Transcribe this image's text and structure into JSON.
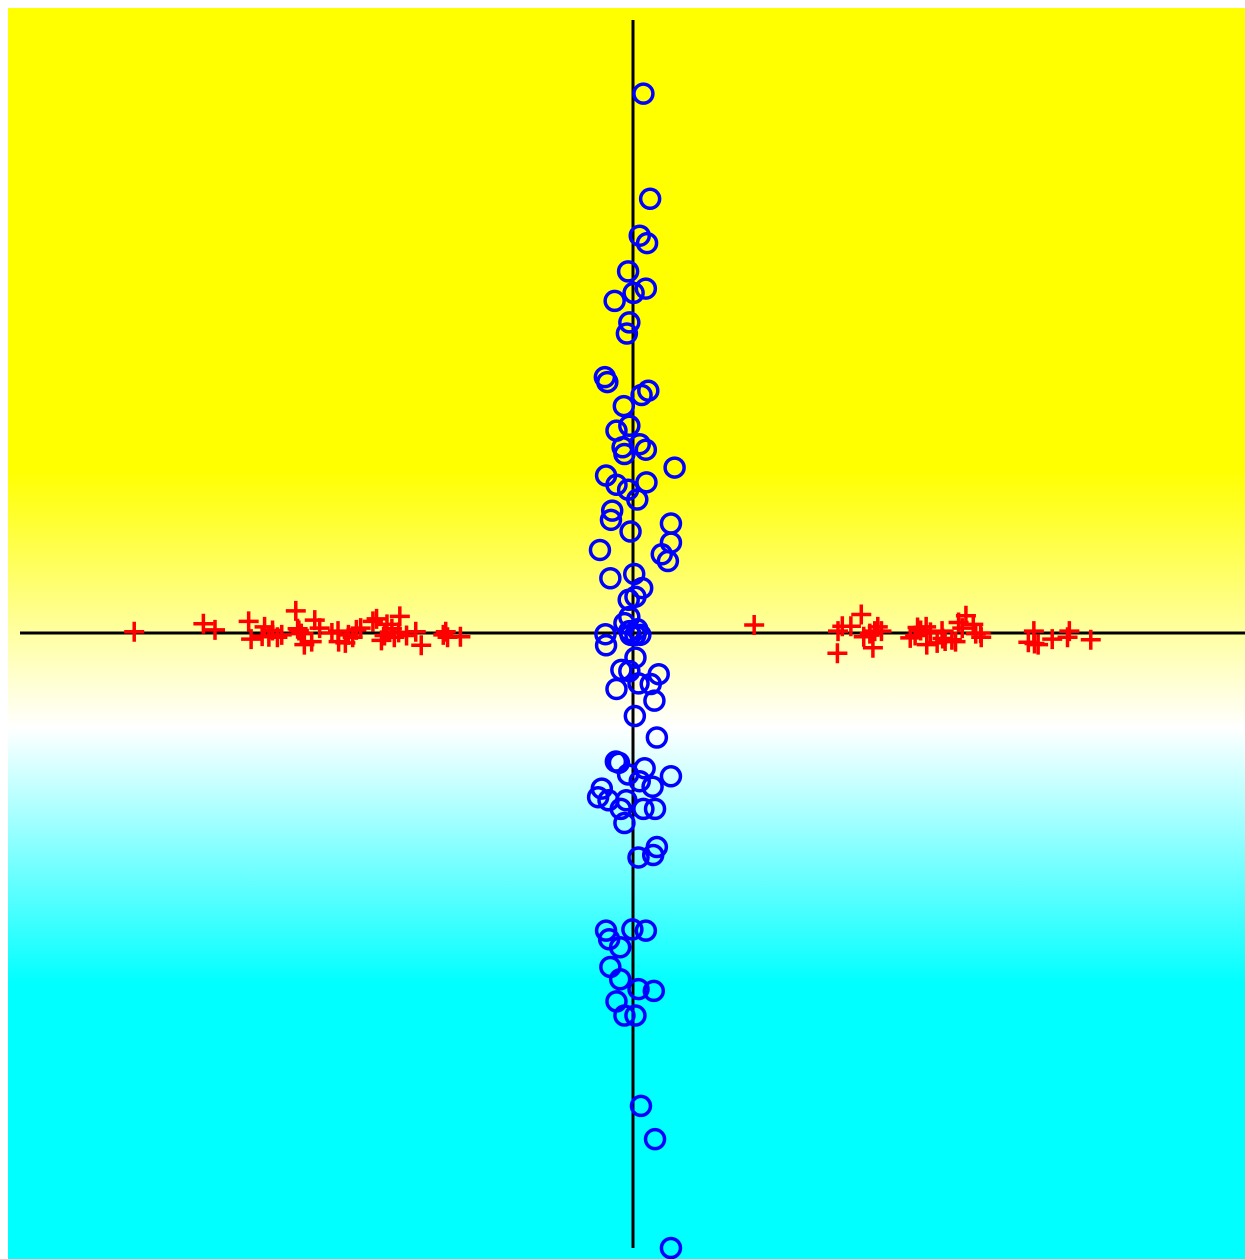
{
  "chart_data": {
    "type": "scatter",
    "title": "",
    "xlabel": "",
    "ylabel": "",
    "xlim": [
      -10,
      10
    ],
    "ylim": [
      -10,
      10
    ],
    "grid": false,
    "axes_lines_through_origin": true,
    "background": {
      "kind": "decision-surface-gradient",
      "top_color": "#ffff00",
      "mid_color": "#ffffff",
      "bottom_color": "#00ffff"
    },
    "series": [
      {
        "marker": "plus",
        "color": "#ff0000",
        "points": [
          [
            -8.15,
            0.02
          ],
          [
            -7.02,
            0.15
          ],
          [
            -6.83,
            0.05
          ],
          [
            -6.28,
            0.19
          ],
          [
            -6.24,
            -0.1
          ],
          [
            -6.06,
            -0.05
          ],
          [
            -6.02,
            0.1
          ],
          [
            -5.95,
            -0.06
          ],
          [
            -5.89,
            0.04
          ],
          [
            -5.81,
            -0.07
          ],
          [
            -5.74,
            -0.03
          ],
          [
            -5.51,
            0.36
          ],
          [
            -5.48,
            0.07
          ],
          [
            -5.46,
            0.04
          ],
          [
            -5.42,
            -0.01
          ],
          [
            -5.37,
            -0.19
          ],
          [
            -5.25,
            -0.14
          ],
          [
            -5.2,
            0.21
          ],
          [
            -5.12,
            0.08
          ],
          [
            -4.92,
            0.0
          ],
          [
            -4.82,
            0.03
          ],
          [
            -4.81,
            -0.14
          ],
          [
            -4.7,
            -0.16
          ],
          [
            -4.65,
            -0.03
          ],
          [
            -4.58,
            -0.07
          ],
          [
            -4.52,
            0.05
          ],
          [
            -4.45,
            0.08
          ],
          [
            -4.25,
            0.19
          ],
          [
            -4.19,
            0.23
          ],
          [
            -4.11,
            -0.12
          ],
          [
            -4.06,
            -0.04
          ],
          [
            -4.02,
            0.14
          ],
          [
            -3.94,
            0.07
          ],
          [
            -3.9,
            -0.07
          ],
          [
            -3.83,
            0.01
          ],
          [
            -3.81,
            0.27
          ],
          [
            -3.7,
            -0.04
          ],
          [
            -3.55,
            0.02
          ],
          [
            -3.46,
            -0.2
          ],
          [
            -3.1,
            -0.03
          ],
          [
            -3.06,
            0.02
          ],
          [
            -3.03,
            -0.07
          ],
          [
            -2.82,
            -0.06
          ],
          [
            1.98,
            0.13
          ],
          [
            3.34,
            -0.33
          ],
          [
            3.35,
            0.03
          ],
          [
            3.42,
            0.11
          ],
          [
            3.56,
            0.11
          ],
          [
            3.73,
            0.3
          ],
          [
            3.77,
            -0.06
          ],
          [
            3.87,
            -0.01
          ],
          [
            3.92,
            -0.24
          ],
          [
            3.95,
            0.03
          ],
          [
            4.0,
            0.1
          ],
          [
            4.06,
            0.03
          ],
          [
            4.53,
            -0.08
          ],
          [
            4.61,
            -0.04
          ],
          [
            4.65,
            0.09
          ],
          [
            4.7,
            0.04
          ],
          [
            4.79,
            0.1
          ],
          [
            4.8,
            -0.19
          ],
          [
            4.86,
            0.01
          ],
          [
            4.97,
            -0.16
          ],
          [
            5.05,
            0.03
          ],
          [
            5.06,
            -0.09
          ],
          [
            5.1,
            -0.13
          ],
          [
            5.21,
            -0.11
          ],
          [
            5.27,
            -0.14
          ],
          [
            5.32,
            0.17
          ],
          [
            5.38,
            0.08
          ],
          [
            5.44,
            0.28
          ],
          [
            5.56,
            0.14
          ],
          [
            5.6,
            -0.01
          ],
          [
            5.68,
            0.0
          ],
          [
            5.69,
            -0.07
          ],
          [
            6.46,
            -0.15
          ],
          [
            6.55,
            0.03
          ],
          [
            6.56,
            -0.17
          ],
          [
            6.62,
            -0.19
          ],
          [
            6.85,
            -0.1
          ],
          [
            7.1,
            -0.07
          ],
          [
            7.13,
            0.03
          ],
          [
            7.48,
            -0.11
          ]
        ]
      },
      {
        "marker": "circle",
        "color": "#0000ff",
        "points": [
          [
            0.17,
            8.77
          ],
          [
            0.28,
            7.06
          ],
          [
            0.11,
            6.46
          ],
          [
            0.23,
            6.34
          ],
          [
            -0.08,
            5.88
          ],
          [
            0.21,
            5.6
          ],
          [
            0.01,
            5.53
          ],
          [
            -0.3,
            5.4
          ],
          [
            -0.06,
            5.05
          ],
          [
            -0.1,
            4.87
          ],
          [
            -0.46,
            4.16
          ],
          [
            -0.42,
            4.08
          ],
          [
            0.25,
            3.94
          ],
          [
            0.14,
            3.87
          ],
          [
            -0.15,
            3.69
          ],
          [
            -0.06,
            3.37
          ],
          [
            -0.27,
            3.29
          ],
          [
            0.11,
            3.07
          ],
          [
            -0.17,
            3.02
          ],
          [
            -0.14,
            2.91
          ],
          [
            0.21,
            2.98
          ],
          [
            0.68,
            2.69
          ],
          [
            -0.44,
            2.56
          ],
          [
            -0.27,
            2.41
          ],
          [
            0.22,
            2.45
          ],
          [
            -0.08,
            2.33
          ],
          [
            0.07,
            2.17
          ],
          [
            -0.34,
            1.99
          ],
          [
            0.62,
            1.78
          ],
          [
            -0.36,
            1.84
          ],
          [
            -0.04,
            1.65
          ],
          [
            0.62,
            1.47
          ],
          [
            -0.54,
            1.35
          ],
          [
            0.47,
            1.28
          ],
          [
            0.57,
            1.17
          ],
          [
            0.02,
            0.96
          ],
          [
            -0.37,
            0.89
          ],
          [
            0.15,
            0.73
          ],
          [
            -0.07,
            0.54
          ],
          [
            0.04,
            0.59
          ],
          [
            -0.06,
            0.26
          ],
          [
            -0.14,
            0.16
          ],
          [
            0.07,
            0.06
          ],
          [
            -0.06,
            0.03
          ],
          [
            0.04,
            -0.03
          ],
          [
            -0.04,
            -0.03
          ],
          [
            0.12,
            -0.03
          ],
          [
            -0.45,
            -0.02
          ],
          [
            -0.44,
            -0.2
          ],
          [
            0.04,
            -0.4
          ],
          [
            -0.19,
            -0.6
          ],
          [
            -0.06,
            -0.62
          ],
          [
            0.42,
            -0.67
          ],
          [
            0.09,
            -0.82
          ],
          [
            0.29,
            -0.83
          ],
          [
            -0.27,
            -0.91
          ],
          [
            0.35,
            -1.1
          ],
          [
            0.03,
            -1.35
          ],
          [
            0.39,
            -1.7
          ],
          [
            -0.28,
            -2.09
          ],
          [
            -0.23,
            -2.11
          ],
          [
            0.19,
            -2.2
          ],
          [
            -0.08,
            -2.3
          ],
          [
            0.62,
            -2.33
          ],
          [
            0.11,
            -2.41
          ],
          [
            0.32,
            -2.5
          ],
          [
            -0.51,
            -2.53
          ],
          [
            -0.57,
            -2.67
          ],
          [
            -0.11,
            -2.72
          ],
          [
            -0.4,
            -2.72
          ],
          [
            0.17,
            -2.86
          ],
          [
            -0.2,
            -2.86
          ],
          [
            0.36,
            -2.86
          ],
          [
            -0.14,
            -3.09
          ],
          [
            0.39,
            -3.48
          ],
          [
            0.33,
            -3.61
          ],
          [
            0.09,
            -3.65
          ],
          [
            -0.44,
            -4.84
          ],
          [
            -0.01,
            -4.82
          ],
          [
            0.21,
            -4.84
          ],
          [
            -0.39,
            -4.98
          ],
          [
            -0.21,
            -5.11
          ],
          [
            -0.37,
            -5.43
          ],
          [
            -0.21,
            -5.63
          ],
          [
            0.34,
            -5.82
          ],
          [
            0.09,
            -5.79
          ],
          [
            -0.27,
            -5.99
          ],
          [
            0.04,
            -6.22
          ],
          [
            -0.14,
            -6.22
          ],
          [
            0.13,
            -7.69
          ],
          [
            0.36,
            -8.23
          ],
          [
            0.62,
            -10.0
          ]
        ]
      }
    ]
  }
}
